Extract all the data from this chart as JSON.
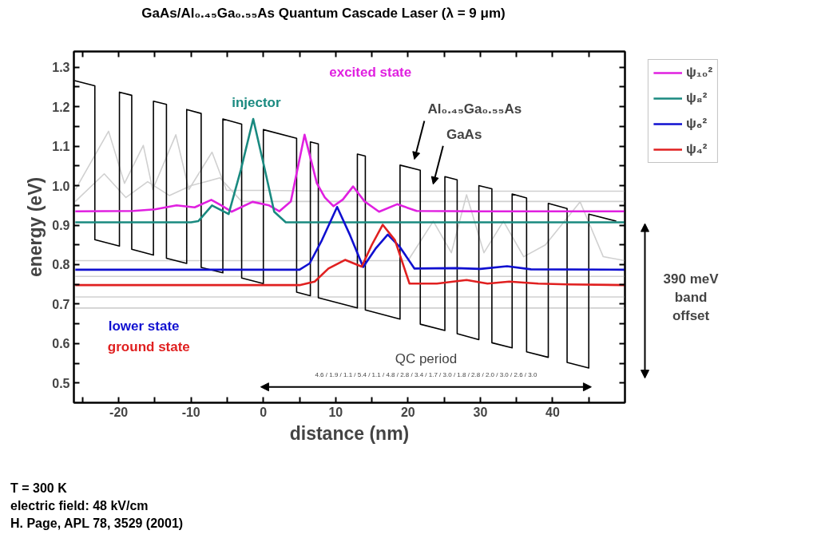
{
  "chart_data": {
    "type": "line",
    "title": "GaAs/Al₀.₄₅Ga₀.₅₅As Quantum Cascade Laser (λ = 9 μm)",
    "xlabel": "distance (nm)",
    "ylabel": "energy (eV)",
    "xlim": [
      -26.2,
      50
    ],
    "ylim": [
      0.45,
      1.34
    ],
    "xticks": [
      {
        "value": -25,
        "label": null
      },
      -20,
      {
        "value": -15,
        "label": null
      },
      -10,
      {
        "value": -5,
        "label": null
      },
      0,
      {
        "value": 5,
        "label": null
      },
      10,
      {
        "value": 15,
        "label": null
      },
      20,
      {
        "value": 25,
        "label": null
      },
      30,
      {
        "value": 35,
        "label": null
      },
      40,
      {
        "value": 45,
        "label": null
      }
    ],
    "yticks": [
      0.5,
      {
        "value": 0.55,
        "label": null
      },
      0.6,
      {
        "value": 0.65,
        "label": null
      },
      0.7,
      {
        "value": 0.75,
        "label": null
      },
      0.8,
      {
        "value": 0.85,
        "label": null
      },
      0.9,
      {
        "value": 0.95,
        "label": null
      },
      {
        "value": 1.0,
        "label": "1.0"
      },
      {
        "value": 1.05,
        "label": null
      },
      1.1,
      {
        "value": 1.15,
        "label": null
      },
      1.2,
      {
        "value": 1.25,
        "label": null
      },
      1.3
    ],
    "legend": "top right",
    "series": [
      {
        "color": "#d0d0d0",
        "x": [
          -26,
          -21.4,
          -19.2,
          -16.6,
          -15.3,
          -12.1,
          -10.3,
          -7.1,
          -5.1,
          0,
          10,
          20,
          30,
          40,
          50
        ],
        "values": [
          0.99,
          1.138,
          1.006,
          1.102,
          0.99,
          1.129,
          0.99,
          1.085,
          0.988,
          0.988,
          0.986,
          0.986,
          0.986,
          0.986,
          0.986
        ]
      },
      {
        "color": "#d0d0d0",
        "x": [
          -26,
          -22,
          -19,
          -16,
          -13,
          -10,
          -6,
          -3,
          0,
          50
        ],
        "values": [
          0.96,
          1.03,
          0.97,
          1.01,
          0.975,
          1.0,
          1.02,
          0.96,
          0.96,
          0.96
        ]
      },
      {
        "color": "#d0d0d0",
        "x": [
          -26,
          15,
          20,
          23.5,
          26,
          28.1,
          30.5,
          33.2,
          36,
          39,
          43.8,
          47,
          50
        ],
        "values": [
          0.81,
          0.81,
          0.81,
          0.91,
          0.83,
          0.977,
          0.83,
          0.91,
          0.82,
          0.85,
          0.959,
          0.82,
          0.81
        ]
      },
      {
        "color": "#d0d0d0",
        "x": [
          -26,
          50
        ],
        "values": [
          0.77,
          0.77
        ]
      },
      {
        "color": "#d0d0d0",
        "x": [
          -26,
          50
        ],
        "values": [
          0.718,
          0.718
        ]
      },
      {
        "color": "#d0d0d0",
        "x": [
          -26,
          50
        ],
        "values": [
          0.69,
          0.69
        ]
      },
      {
        "color": "#000000",
        "x": [
          -26.1,
          -23.3,
          -23.3,
          -19.9,
          -19.9,
          -18.2,
          -18.2,
          -15.2,
          -15.2,
          -13.4,
          -13.4,
          -10.6,
          -10.6,
          -8.6,
          -8.6,
          -5.6,
          -5.6,
          -3.0,
          -3.0,
          0,
          0,
          4.6,
          4.6,
          6.5,
          6.5,
          7.6,
          7.6,
          13.0,
          13.0,
          14.1,
          14.1,
          18.9,
          18.9,
          21.7,
          21.7,
          25.1,
          25.1,
          26.8,
          26.8,
          29.8,
          29.8,
          31.6,
          31.6,
          34.4,
          34.4,
          36.4,
          36.4,
          39.4,
          39.4,
          42.0,
          42.0,
          45.0,
          45.0,
          48.8
        ],
        "values": [
          1.266,
          1.253,
          0.863,
          0.847,
          1.237,
          1.229,
          0.839,
          0.824,
          1.214,
          1.206,
          0.816,
          0.803,
          1.193,
          1.183,
          0.793,
          0.779,
          1.169,
          1.156,
          0.766,
          0.752,
          1.142,
          1.12,
          0.73,
          0.721,
          1.111,
          1.106,
          0.716,
          0.69,
          1.08,
          1.075,
          0.685,
          0.662,
          1.052,
          1.039,
          0.649,
          0.633,
          1.023,
          1.015,
          0.625,
          0.61,
          1.0,
          0.992,
          0.602,
          0.589,
          0.979,
          0.969,
          0.579,
          0.565,
          0.955,
          0.942,
          0.552,
          0.538,
          0.928,
          0.91
        ]
      },
      {
        "name": "ψ₁₀²",
        "color": "#e020e0",
        "x": [
          -26,
          -18,
          -15,
          -12,
          -9.5,
          -7.2,
          -5.8,
          -4.4,
          -1.5,
          0.8,
          2.2,
          3.8,
          5.7,
          7.4,
          8.5,
          9.7,
          11.0,
          12.4,
          14.0,
          16.0,
          18.5,
          21.2,
          30,
          40,
          50
        ],
        "values": [
          0.935,
          0.936,
          0.94,
          0.95,
          0.945,
          0.964,
          0.95,
          0.934,
          0.959,
          0.95,
          0.935,
          0.96,
          1.129,
          1.006,
          0.97,
          0.948,
          0.965,
          0.998,
          0.96,
          0.934,
          0.953,
          0.936,
          0.935,
          0.935,
          0.935
        ]
      },
      {
        "name": "ψ₈²",
        "color": "#1a8a80",
        "x": [
          -26,
          -10,
          -9,
          -7.1,
          -4.8,
          -3.1,
          -1.4,
          0.2,
          1.5,
          3.1,
          20,
          50
        ],
        "values": [
          0.907,
          0.907,
          0.91,
          0.95,
          0.928,
          1.041,
          1.169,
          1.041,
          0.934,
          0.907,
          0.907,
          0.907
        ]
      },
      {
        "name": "ψ₆²",
        "color": "#1010d0",
        "x": [
          -26,
          5,
          6.4,
          8.1,
          10.2,
          12.0,
          13.8,
          15.5,
          17.2,
          18.9,
          20.9,
          26.6,
          30,
          33.7,
          37,
          50
        ],
        "values": [
          0.787,
          0.787,
          0.803,
          0.862,
          0.946,
          0.874,
          0.794,
          0.84,
          0.876,
          0.844,
          0.79,
          0.791,
          0.789,
          0.796,
          0.788,
          0.787
        ]
      },
      {
        "name": "ψ₄²",
        "color": "#e02020",
        "x": [
          -26,
          5,
          7.1,
          9,
          11.3,
          13.6,
          15,
          16.5,
          18.2,
          20.2,
          24,
          28.1,
          31,
          34,
          38,
          42,
          50
        ],
        "values": [
          0.748,
          0.748,
          0.757,
          0.79,
          0.812,
          0.795,
          0.85,
          0.901,
          0.862,
          0.752,
          0.752,
          0.761,
          0.752,
          0.757,
          0.752,
          0.75,
          0.748
        ]
      }
    ],
    "annotations": [
      "excited state",
      "injector",
      "lower state",
      "ground state",
      "Al₀.₄₅Ga₀.₅₅As",
      "GaAs",
      "4.6 / 1.9 / 1.1 / 5.4 / 1.1 / 4.8 / 2.8 / 3.4 / 1.7 / 3.0 / 1.8 / 2.8 / 2.0 / 3.0 / 2.6 / 3.0",
      "QC period",
      "390 meV\nband\noffset",
      "T = 300 K",
      "electric field: 48 kV/cm",
      "H. Page, APL 78, 3529 (2001)"
    ]
  }
}
